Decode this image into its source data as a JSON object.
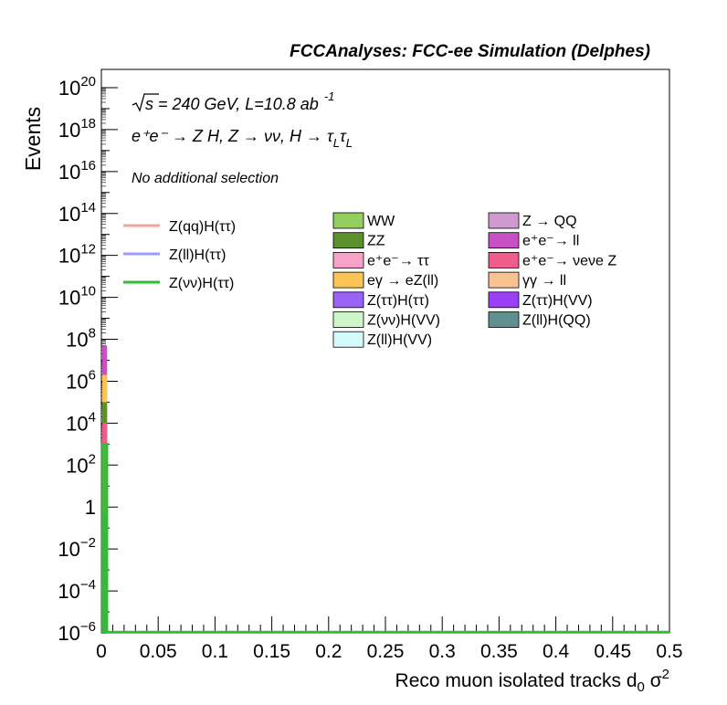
{
  "header": "FCCAnalyses: FCC-ee Simulation (Delphes)",
  "annotations": {
    "energy_sqrt": "s",
    "energy_rest": " = 240 GeV, L=10.8 ab",
    "lumi_exp": "-1",
    "process": "e⁺e⁻ → Z H, Z → νν, H → τ",
    "tau_sub": "L",
    "selection": "No additional selection"
  },
  "chart_data": {
    "type": "histogram-stacked",
    "title": "",
    "xlabel": "Reco muon isolated tracks d",
    "xlabel_sub": "0",
    "xlabel_tail": " σ",
    "xlabel_sup": "2",
    "ylabel": "Events",
    "xlim": [
      0,
      0.5
    ],
    "ylim": [
      1e-06,
      1e+21
    ],
    "yscale": "log",
    "x_ticks": [
      "0",
      "0.05",
      "0.1",
      "0.15",
      "0.2",
      "0.25",
      "0.3",
      "0.35",
      "0.4",
      "0.45",
      "0.5"
    ],
    "y_ticks": [
      {
        "base": "10",
        "exp": "20",
        "value": 1e+20
      },
      {
        "base": "10",
        "exp": "18",
        "value": 1e+18
      },
      {
        "base": "10",
        "exp": "16",
        "value": 1e+16
      },
      {
        "base": "10",
        "exp": "14",
        "value": 100000000000000.0
      },
      {
        "base": "10",
        "exp": "12",
        "value": 1000000000000.0
      },
      {
        "base": "10",
        "exp": "10",
        "value": 10000000000.0
      },
      {
        "base": "10",
        "exp": "8",
        "value": 100000000.0
      },
      {
        "base": "10",
        "exp": "6",
        "value": 1000000.0
      },
      {
        "base": "10",
        "exp": "4",
        "value": 10000.0
      },
      {
        "base": "10",
        "exp": "2",
        "value": 100.0
      },
      {
        "base": "1",
        "exp": "",
        "value": 1
      },
      {
        "base": "10",
        "exp": "−2",
        "value": 0.01
      },
      {
        "base": "10",
        "exp": "−4",
        "value": 0.0001
      },
      {
        "base": "10",
        "exp": "−6",
        "value": 1e-06
      }
    ],
    "grid": false,
    "bin_width": 0.005,
    "stacked_first_bin": [
      {
        "name": "ZZ",
        "color": "#5c8f2e",
        "top": 100000.0
      },
      {
        "name": "e⁺e⁻ → νeνe Z",
        "color": "#f25c8a",
        "top": 10000.0
      },
      {
        "name": "eγ → eZ(ll)",
        "color": "#fbc455",
        "top": 2000000.0
      },
      {
        "name": "e⁺e⁻ → ll",
        "color": "#c84fc4",
        "top": 50000000.0
      },
      {
        "name": "Z(ττ)H(ττ)",
        "color": "#9a63f5",
        "top": 0.5
      }
    ],
    "signal_lines": [
      {
        "name": "Z(qq)H(ττ)",
        "color": "#f7a0a0"
      },
      {
        "name": "Z(ll)H(ττ)",
        "color": "#9d9df7"
      },
      {
        "name": "Z(νν)H(ττ)",
        "color": "#33bb33",
        "first_bin": 1000
      }
    ],
    "legend_lines": [
      {
        "label": "Z(qq)H(ττ)",
        "color": "#f7a0a0"
      },
      {
        "label": "Z(ll)H(ττ)",
        "color": "#9d9df7"
      },
      {
        "label": "Z(νν)H(ττ)",
        "color": "#33bb33"
      }
    ],
    "legend_col1": [
      {
        "label": "WW",
        "color": "#93cf5f"
      },
      {
        "label": "ZZ",
        "color": "#5c8f2e"
      },
      {
        "label": "e⁺e⁻→ ττ",
        "color": "#f8a2c8"
      },
      {
        "label": "eγ → eZ(ll)",
        "color": "#fbc455"
      },
      {
        "label": "Z(ττ)H(ττ)",
        "color": "#9a63f5"
      },
      {
        "label": "Z(νν)H(VV)",
        "color": "#cdf7c8"
      },
      {
        "label": "Z(ll)H(VV)",
        "color": "#d3fbfb"
      }
    ],
    "legend_col2": [
      {
        "label": "Z → QQ",
        "color": "#cf9bcf"
      },
      {
        "label": "e⁺e⁻→ ll",
        "color": "#c84fc4"
      },
      {
        "label": "e⁺e⁻→ νeνe Z",
        "color": "#f25c8a"
      },
      {
        "label": "γγ → ll",
        "color": "#f8c291"
      },
      {
        "label": "Z(ττ)H(VV)",
        "color": "#9a3ff7"
      },
      {
        "label": "Z(ll)H(QQ)",
        "color": "#5f8f8f"
      }
    ]
  }
}
